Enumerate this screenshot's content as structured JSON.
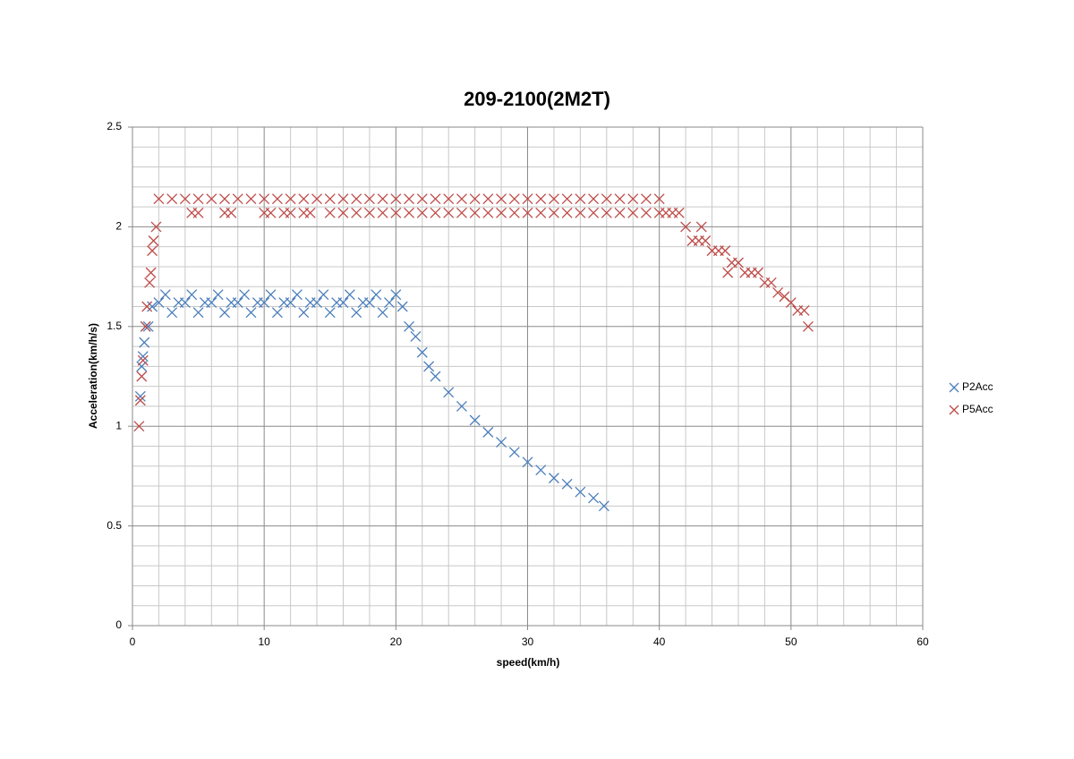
{
  "chart_data": {
    "type": "scatter",
    "title": "209-2100(2M2T)",
    "x_label": "speed(km/h)",
    "y_label": "Acceleration(km/h/s)",
    "xlim": [
      0,
      60
    ],
    "xticks": [
      0,
      10,
      20,
      30,
      40,
      50,
      60
    ],
    "ylim": [
      0,
      2.5
    ],
    "yticks": [
      0,
      0.5,
      1,
      1.5,
      2,
      2.5
    ],
    "grid": true,
    "minor_grid": true,
    "legend": "right",
    "series": [
      {
        "name": "P2Acc",
        "color": "#4a7ebb",
        "x": [
          0.6,
          0.7,
          0.8,
          0.9,
          1.0,
          1.2,
          1.5,
          2,
          2.5,
          3,
          3.5,
          4,
          4.5,
          5,
          5.5,
          6,
          6.5,
          7,
          7.5,
          8,
          8.5,
          9,
          9.5,
          10,
          10.5,
          11,
          11.5,
          12,
          12.5,
          13,
          13.5,
          14,
          14.5,
          15,
          15.5,
          16,
          16.5,
          17,
          17.5,
          18,
          18.5,
          19,
          19.5,
          20,
          20.5,
          21,
          21.5,
          22,
          22.5,
          23,
          24,
          25,
          26,
          27,
          28,
          29,
          30,
          31,
          32,
          33,
          34,
          35,
          35.8
        ],
        "values": [
          1.15,
          1.3,
          1.35,
          1.42,
          1.5,
          1.5,
          1.6,
          1.62,
          1.66,
          1.57,
          1.62,
          1.62,
          1.66,
          1.57,
          1.62,
          1.62,
          1.66,
          1.57,
          1.62,
          1.62,
          1.66,
          1.57,
          1.62,
          1.62,
          1.66,
          1.57,
          1.62,
          1.62,
          1.66,
          1.57,
          1.62,
          1.62,
          1.66,
          1.57,
          1.62,
          1.62,
          1.66,
          1.57,
          1.62,
          1.62,
          1.66,
          1.57,
          1.62,
          1.66,
          1.6,
          1.5,
          1.45,
          1.37,
          1.3,
          1.25,
          1.17,
          1.1,
          1.03,
          0.97,
          0.92,
          0.87,
          0.82,
          0.78,
          0.74,
          0.71,
          0.67,
          0.64,
          0.6
        ]
      },
      {
        "name": "P5Acc",
        "color": "#be4b48",
        "x": [
          0.5,
          0.6,
          0.7,
          0.8,
          1.0,
          1.1,
          1.3,
          1.4,
          1.5,
          1.6,
          1.8,
          2,
          3,
          4,
          5,
          6,
          7,
          8,
          9,
          10,
          11,
          12,
          13,
          14,
          15,
          16,
          17,
          18,
          19,
          20,
          21,
          22,
          23,
          24,
          25,
          26,
          27,
          28,
          29,
          30,
          31,
          32,
          33,
          34,
          35,
          36,
          37,
          38,
          39,
          40,
          4.5,
          5,
          7,
          7.5,
          10,
          10.5,
          11.5,
          12,
          13,
          13.5,
          15,
          16,
          17,
          18,
          19,
          20,
          21,
          22,
          23,
          24,
          25,
          26,
          27,
          28,
          29,
          30,
          31,
          32,
          33,
          34,
          35,
          36,
          37,
          38,
          39,
          40,
          40.5,
          41,
          41.5,
          42,
          42.5,
          43,
          43.2,
          43.5,
          44,
          44.5,
          45,
          45.2,
          45.5,
          46,
          46.5,
          47,
          47.5,
          48,
          48.5,
          49,
          49.5,
          50,
          50.5,
          51,
          51.3
        ],
        "values": [
          1.0,
          1.13,
          1.25,
          1.33,
          1.5,
          1.6,
          1.72,
          1.77,
          1.88,
          1.93,
          2.0,
          2.14,
          2.14,
          2.14,
          2.14,
          2.14,
          2.14,
          2.14,
          2.14,
          2.14,
          2.14,
          2.14,
          2.14,
          2.14,
          2.14,
          2.14,
          2.14,
          2.14,
          2.14,
          2.14,
          2.14,
          2.14,
          2.14,
          2.14,
          2.14,
          2.14,
          2.14,
          2.14,
          2.14,
          2.14,
          2.14,
          2.14,
          2.14,
          2.14,
          2.14,
          2.14,
          2.14,
          2.14,
          2.14,
          2.14,
          2.07,
          2.07,
          2.07,
          2.07,
          2.07,
          2.07,
          2.07,
          2.07,
          2.07,
          2.07,
          2.07,
          2.07,
          2.07,
          2.07,
          2.07,
          2.07,
          2.07,
          2.07,
          2.07,
          2.07,
          2.07,
          2.07,
          2.07,
          2.07,
          2.07,
          2.07,
          2.07,
          2.07,
          2.07,
          2.07,
          2.07,
          2.07,
          2.07,
          2.07,
          2.07,
          2.07,
          2.07,
          2.07,
          2.07,
          2.0,
          1.93,
          1.93,
          2.0,
          1.93,
          1.88,
          1.88,
          1.88,
          1.77,
          1.82,
          1.82,
          1.77,
          1.77,
          1.77,
          1.72,
          1.72,
          1.67,
          1.65,
          1.62,
          1.58,
          1.58,
          1.5
        ]
      }
    ]
  }
}
